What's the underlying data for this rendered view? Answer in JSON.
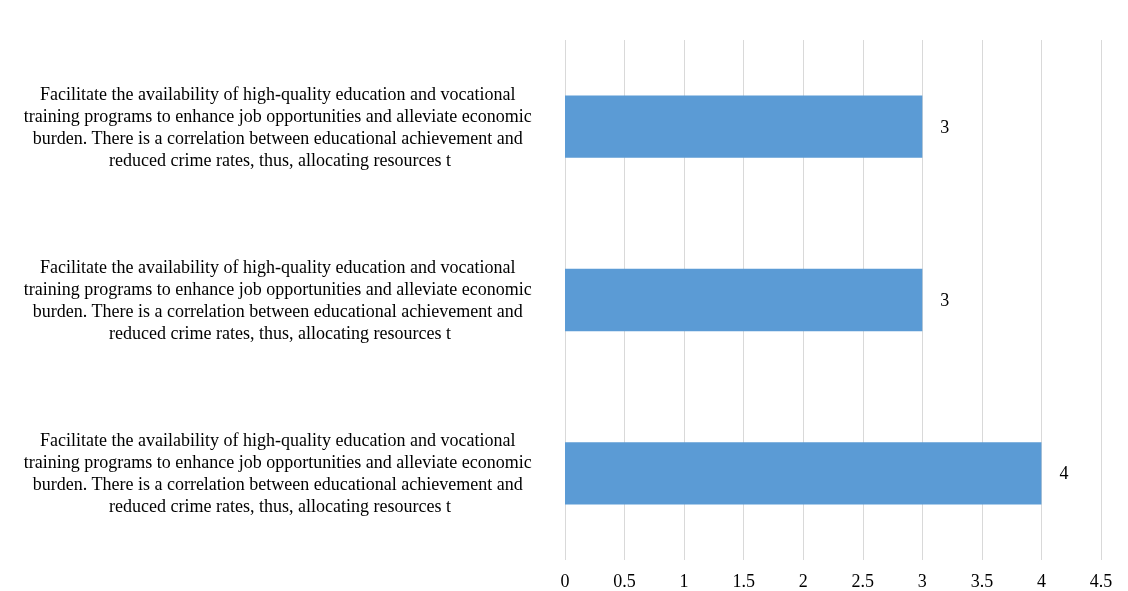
{
  "chart_data": {
    "type": "bar",
    "orientation": "horizontal",
    "categories": [
      "Facilitate the availability of high-quality education and vocational training programs to enhance job opportunities and alleviate economic burden. There is a correlation between educational achievement and reduced crime rates, thus, allocating resources t",
      "Facilitate the availability of high-quality education and vocational training programs to enhance job opportunities and alleviate economic burden. There is a correlation between educational achievement and reduced crime rates, thus, allocating resources t",
      "Facilitate the availability of high-quality education and vocational training programs to enhance job opportunities and alleviate economic burden. There is a correlation between educational achievement and reduced crime rates, thus, allocating resources t"
    ],
    "values": [
      3,
      3,
      4
    ],
    "color": "#5b9bd5",
    "xlim": [
      0,
      4.5
    ],
    "xticks": [
      0,
      0.5,
      1,
      1.5,
      2,
      2.5,
      3,
      3.5,
      4,
      4.5
    ],
    "grid": "x",
    "data_labels": true
  }
}
